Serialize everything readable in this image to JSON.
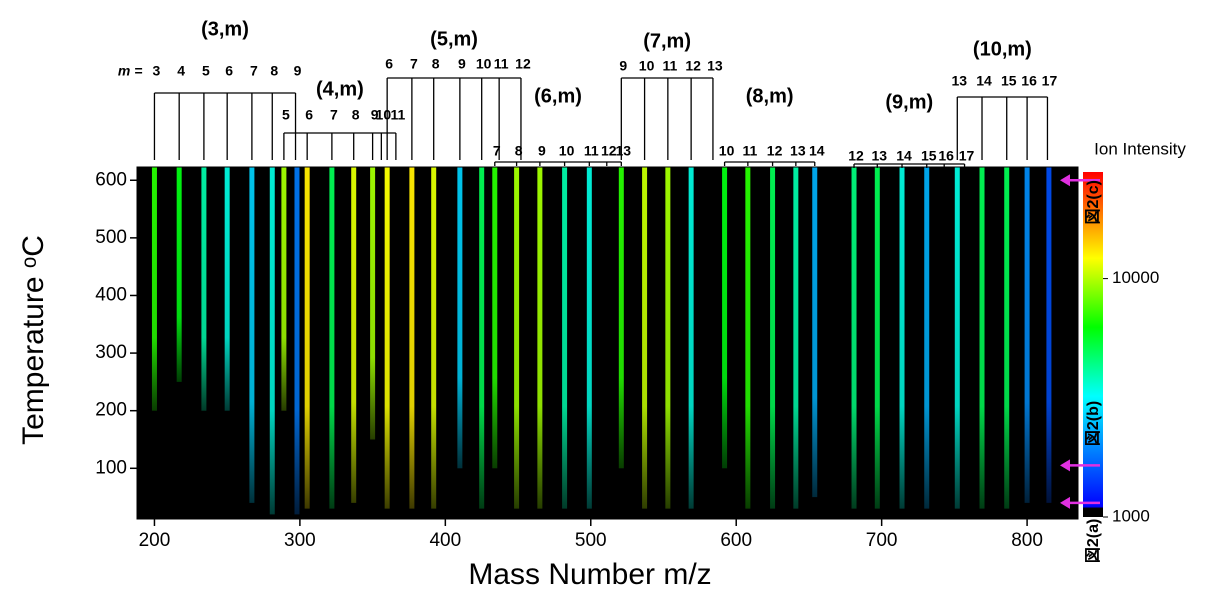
{
  "chart_data": {
    "type": "heatmap",
    "x_label": "Mass Number m/z",
    "y_label": "Temperature ᵒC",
    "xlim": [
      188,
      835
    ],
    "xticks": [
      200,
      300,
      400,
      500,
      600,
      700,
      800
    ],
    "ylim": [
      12,
      623
    ],
    "yticks": [
      100,
      200,
      300,
      400,
      500,
      600
    ],
    "background": "#000000",
    "peaks": {
      "x": [
        200,
        217,
        234,
        250,
        267,
        281,
        289,
        298,
        305,
        322,
        337,
        350,
        360,
        377,
        392,
        410,
        425,
        434,
        449,
        465,
        482,
        499,
        521,
        537,
        553,
        569,
        592,
        608,
        625,
        641,
        654,
        681,
        697,
        714,
        731,
        752,
        769,
        786,
        800,
        815
      ],
      "intensity": [
        6000,
        5000,
        3000,
        2500,
        2000,
        2500,
        9000,
        1500,
        13000,
        4000,
        11000,
        9000,
        12000,
        13000,
        11000,
        2000,
        4000,
        6000,
        9000,
        9000,
        3000,
        2500,
        6000,
        10000,
        9000,
        2500,
        5000,
        6000,
        4000,
        3000,
        1800,
        3500,
        4000,
        2500,
        1800,
        2500,
        4000,
        4000,
        1600,
        1300
      ],
      "onset": [
        200,
        250,
        200,
        200,
        40,
        20,
        200,
        20,
        30,
        30,
        40,
        150,
        30,
        30,
        30,
        100,
        30,
        100,
        30,
        30,
        30,
        30,
        100,
        30,
        30,
        30,
        100,
        30,
        30,
        30,
        50,
        30,
        30,
        30,
        30,
        30,
        30,
        30,
        40,
        40
      ]
    },
    "colorbar": {
      "label": "Ion Intensity",
      "scale": "log",
      "lim": [
        1000,
        28000
      ],
      "ticks": [
        1000,
        10000
      ]
    },
    "m_prefix": "m =",
    "groups": [
      {
        "label": "(3,m)",
        "m": [
          3,
          4,
          5,
          6,
          7,
          8,
          9
        ],
        "x": [
          200,
          217,
          234,
          250,
          267,
          281,
          297
        ]
      },
      {
        "label": "(4,m)",
        "m": [
          5,
          6,
          7,
          8,
          9,
          10,
          11
        ],
        "x": [
          289,
          305,
          322,
          337,
          350,
          356,
          366
        ]
      },
      {
        "label": "(5,m)",
        "m": [
          6,
          7,
          8,
          9,
          10,
          11,
          12
        ],
        "x": [
          360,
          377,
          392,
          410,
          425,
          437,
          452
        ]
      },
      {
        "label": "(6,m)",
        "m": [
          7,
          8,
          9,
          10,
          11,
          12,
          13
        ],
        "x": [
          434,
          449,
          465,
          482,
          499,
          511,
          521
        ]
      },
      {
        "label": "(7,m)",
        "m": [
          9,
          10,
          11,
          12,
          13
        ],
        "x": [
          521,
          537,
          553,
          569,
          584
        ]
      },
      {
        "label": "(8,m)",
        "m": [
          10,
          11,
          12,
          13,
          14
        ],
        "x": [
          592,
          608,
          625,
          641,
          654
        ]
      },
      {
        "label": "(9,m)",
        "m": [
          12,
          13,
          14,
          15,
          16,
          17
        ],
        "x": [
          681,
          697,
          714,
          731,
          743,
          757
        ]
      },
      {
        "label": "(10,m)",
        "m": [
          13,
          14,
          15,
          16,
          17
        ],
        "x": [
          752,
          769,
          786,
          800,
          814
        ]
      }
    ],
    "markers": [
      {
        "label": "図2(c)",
        "y": 600
      },
      {
        "label": "図2(b)",
        "y": 105
      },
      {
        "label": "図2(a)",
        "y": 40
      }
    ],
    "marker_color": "#e030e0"
  }
}
